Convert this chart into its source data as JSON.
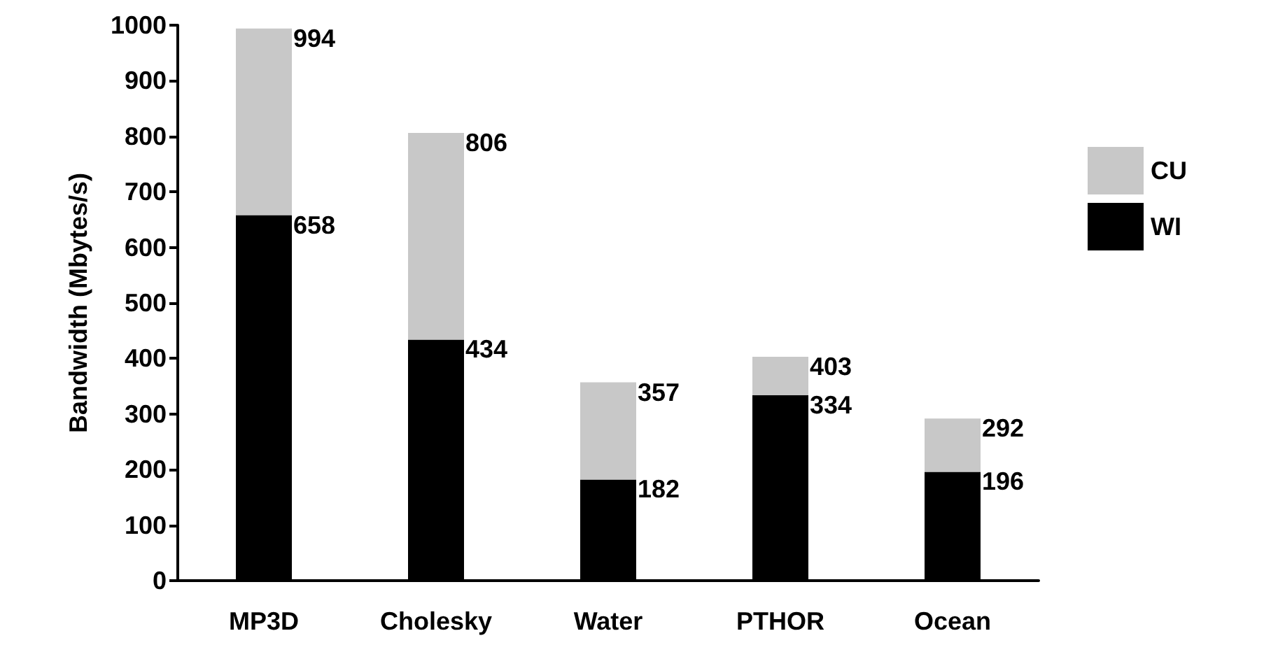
{
  "chart_data": {
    "type": "bar",
    "ylabel": "Bandwidth (Mbytes/s)",
    "categories": [
      "MP3D",
      "Cholesky",
      "Water",
      "PTHOR",
      "Ocean"
    ],
    "stacked": true,
    "series": [
      {
        "name": "WI",
        "color": "#000000",
        "values": [
          658,
          434,
          182,
          334,
          196
        ],
        "value_labels": [
          "658",
          "434",
          "182",
          "334",
          "196"
        ]
      },
      {
        "name": "CU",
        "color": "#c8c8c8",
        "values": [
          336,
          372,
          175,
          69,
          96
        ]
      }
    ],
    "totals": [
      "994",
      "806",
      "357",
      "403",
      "292"
    ],
    "ylim": [
      0,
      1000
    ],
    "yticks": [
      0,
      100,
      200,
      300,
      400,
      500,
      600,
      700,
      800,
      900,
      1000
    ],
    "grid": false,
    "legend": "right"
  }
}
